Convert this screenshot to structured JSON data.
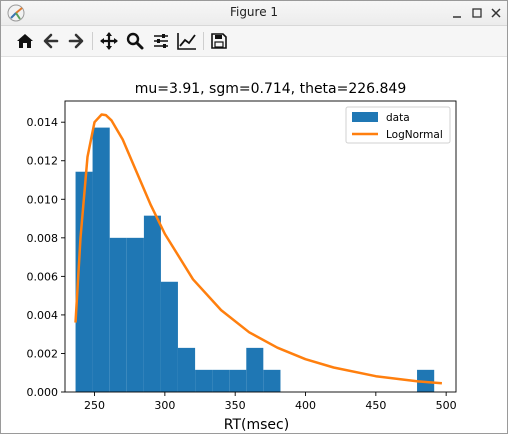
{
  "window": {
    "title": "Figure 1"
  },
  "toolbar": {
    "buttons": [
      {
        "icon": "home-icon"
      },
      {
        "icon": "back-arrow-icon"
      },
      {
        "icon": "forward-arrow-icon"
      },
      {
        "icon": "pan-move-icon"
      },
      {
        "icon": "zoom-magnifier-icon"
      },
      {
        "icon": "configure-subplots-icon"
      },
      {
        "icon": "edit-axis-lines-icon"
      },
      {
        "icon": "save-floppy-icon"
      }
    ]
  },
  "chart_data": {
    "type": "bar",
    "title": "mu=3.91,  sgm=0.714,  theta=226.849",
    "xlabel": "RT(msec)",
    "ylabel": "",
    "xlim": [
      229,
      507
    ],
    "ylim": [
      0,
      0.0151
    ],
    "xticks": [
      250,
      300,
      350,
      400,
      450,
      500
    ],
    "yticks": [
      0.0,
      0.002,
      0.004,
      0.006,
      0.008,
      0.01,
      0.012,
      0.014
    ],
    "ytick_labels": [
      "0.000",
      "0.002",
      "0.004",
      "0.006",
      "0.008",
      "0.010",
      "0.012",
      "0.014"
    ],
    "bin_edges": [
      236.5,
      248.6,
      260.8,
      272.9,
      285.1,
      297.2,
      309.3,
      321.5,
      333.6,
      345.8,
      357.9,
      370.0,
      382.2,
      394.3,
      406.5,
      418.6,
      430.8,
      442.9,
      455.0,
      467.2,
      479.3,
      491.5
    ],
    "series": [
      {
        "name": "data",
        "type": "bar",
        "color": "#1f77b4",
        "values": [
          0.01143,
          0.01372,
          0.008,
          0.008,
          0.00915,
          0.00572,
          0.00229,
          0.00115,
          0.00115,
          0.00115,
          0.00229,
          0.00115,
          0,
          0,
          0,
          0,
          0,
          0,
          0,
          0,
          0.00115
        ]
      },
      {
        "name": "LogNormal",
        "type": "line",
        "color": "#ff7f0e",
        "x": [
          236.5,
          240,
          245,
          250,
          255,
          258,
          262,
          270,
          280,
          290,
          300,
          320,
          340,
          360,
          380,
          400,
          420,
          450,
          480,
          497
        ],
        "y": [
          0.0036,
          0.008,
          0.0122,
          0.014,
          0.0144,
          0.01437,
          0.0141,
          0.0131,
          0.0114,
          0.0097,
          0.0082,
          0.00585,
          0.00425,
          0.0031,
          0.0023,
          0.0017,
          0.00127,
          0.00082,
          0.00055,
          0.00045
        ]
      }
    ],
    "legend": {
      "placement": "top-right",
      "entries": [
        "data",
        "LogNormal"
      ]
    },
    "grid": false
  }
}
